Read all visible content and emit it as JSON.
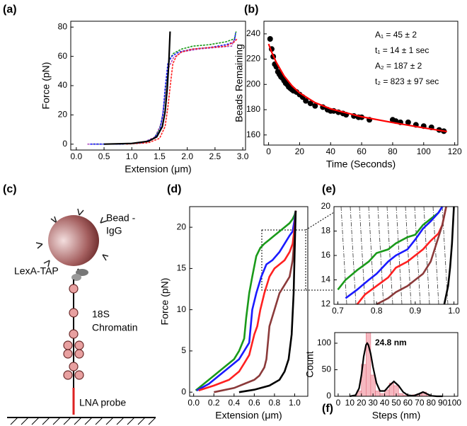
{
  "chart_data": [
    {
      "type": "line",
      "label": "(a)",
      "xlabel": "Extension (μm)",
      "ylabel": "Force (pN)",
      "xlim": [
        -0.1,
        3.05
      ],
      "ylim": [
        -4,
        84
      ],
      "xticks": [
        {
          "value": 0,
          "label": "0.0"
        },
        0.5,
        {
          "value": 1,
          "label": "1.0"
        },
        1.5,
        {
          "value": 2,
          "label": "2.0"
        },
        2.5,
        {
          "value": 3,
          "label": "3.0"
        }
      ],
      "yticks": [
        0,
        20,
        40,
        60,
        80
      ],
      "series": [
        {
          "color": "#b04cc0",
          "x": [
            0.2,
            0.8,
            1.2,
            1.42,
            1.53,
            1.6,
            1.66,
            1.75,
            1.9,
            2.2,
            2.5,
            2.8,
            2.87
          ],
          "values": [
            0,
            0,
            1,
            5,
            14,
            32,
            52,
            59,
            63,
            65,
            66,
            67,
            74
          ]
        },
        {
          "color": "#1a9a1a",
          "x": [
            0.3,
            0.8,
            1.2,
            1.4,
            1.5,
            1.57,
            1.62,
            1.68,
            1.75,
            1.9,
            2.1,
            2.4,
            2.7,
            2.85,
            2.88
          ],
          "values": [
            0,
            0,
            1,
            4,
            10,
            22,
            42,
            58,
            62,
            65,
            67,
            68,
            70,
            72,
            77
          ]
        },
        {
          "color": "#1a1aff",
          "x": [
            0.25,
            0.8,
            1.2,
            1.4,
            1.5,
            1.56,
            1.6,
            1.65,
            1.72,
            1.85,
            2.1,
            2.4,
            2.7,
            2.85,
            2.87
          ],
          "values": [
            0,
            0,
            1,
            4,
            9,
            20,
            38,
            55,
            60,
            63,
            65,
            66,
            68,
            70,
            76
          ]
        },
        {
          "color": "#ff2020",
          "x": [
            0.9,
            1.3,
            1.5,
            1.6,
            1.65,
            1.7,
            1.74,
            1.8,
            1.9,
            2.1,
            2.4,
            2.7,
            2.85,
            2.9
          ],
          "values": [
            0,
            1,
            4,
            12,
            25,
            42,
            55,
            60,
            63,
            65,
            66,
            67,
            70,
            72
          ]
        },
        {
          "color": "#000000",
          "x": [
            0.5,
            1.0,
            1.3,
            1.45,
            1.55,
            1.6,
            1.64,
            1.67,
            1.69
          ],
          "values": [
            0,
            0.5,
            2,
            5,
            12,
            22,
            38,
            58,
            77
          ]
        }
      ]
    },
    {
      "type": "line",
      "label": "(b)",
      "xlabel": "Time (Seconds)",
      "ylabel": "Beads Remaining",
      "xlim": [
        -3,
        122
      ],
      "ylim": [
        152,
        250
      ],
      "xticks": [
        0,
        20,
        40,
        60,
        80,
        100,
        120
      ],
      "yticks": [
        160,
        180,
        200,
        220,
        240
      ],
      "annotations": [
        "A₁ = 45 ± 2",
        "t₁ = 14 ± 1 sec",
        "A₂ = 187 ± 2",
        "t₂ = 823 ± 97 sec"
      ],
      "series": [
        {
          "color": "#000000",
          "mode": "markers",
          "x": [
            1,
            2,
            3,
            4,
            5,
            6,
            7,
            8,
            9,
            10,
            11,
            12,
            13,
            14,
            15,
            16,
            18,
            20,
            22,
            24,
            27,
            30,
            35,
            38,
            40,
            42,
            45,
            48,
            50,
            55,
            58,
            60,
            65,
            80,
            82,
            85,
            90,
            95,
            100,
            105,
            110,
            113
          ],
          "values": [
            236,
            228,
            222,
            216,
            214,
            210,
            208,
            206,
            205,
            203,
            201,
            200,
            198,
            197,
            196,
            195,
            194,
            192,
            190,
            187,
            185,
            183,
            182,
            180,
            179,
            179,
            178,
            177,
            176,
            175,
            174,
            174,
            172,
            172,
            171,
            170,
            170,
            168,
            167,
            166,
            164,
            163
          ]
        },
        {
          "color": "#ff0000",
          "mode": "line",
          "x": [
            0,
            2,
            5,
            10,
            15,
            20,
            30,
            40,
            60,
            80,
            100,
            115
          ],
          "values": [
            232,
            225.5,
            217.4,
            206.7,
            199,
            193.3,
            185.6,
            180.7,
            174.4,
            169.8,
            165.6,
            162.7
          ]
        }
      ]
    },
    {
      "type": "line",
      "label": "(d)",
      "xlabel": "Extension (μm)",
      "ylabel": "Force (pN)",
      "xlim": [
        -0.04,
        1.13
      ],
      "ylim": [
        -0.5,
        22.5
      ],
      "xticks": [
        {
          "value": 0,
          "label": "0.0"
        },
        0.2,
        0.4,
        0.6,
        0.8,
        {
          "value": 1,
          "label": "1.0"
        }
      ],
      "yticks": [
        0,
        5,
        10,
        15,
        20
      ],
      "series": [
        {
          "color": "#1a9a1a",
          "x": [
            0.02,
            0.1,
            0.2,
            0.3,
            0.4,
            0.45,
            0.5,
            0.52,
            0.55,
            0.58,
            0.62,
            0.66,
            0.7,
            0.75,
            0.8,
            0.85,
            0.9,
            0.95,
            0.98,
            1.0,
            1.01
          ],
          "values": [
            0.2,
            1,
            2,
            3,
            4,
            5,
            6.5,
            9,
            12,
            14,
            16.5,
            17.5,
            18,
            18.5,
            19,
            19.5,
            20,
            20.5,
            21,
            21.5,
            22
          ]
        },
        {
          "color": "#1a1aff",
          "x": [
            0.03,
            0.15,
            0.25,
            0.35,
            0.45,
            0.5,
            0.55,
            0.58,
            0.62,
            0.67,
            0.72,
            0.78,
            0.85,
            0.9,
            0.95,
            0.98,
            1.0,
            1.01
          ],
          "values": [
            0.2,
            1,
            2,
            3,
            4,
            5,
            6,
            10,
            12,
            14,
            15.5,
            16,
            17,
            18,
            19,
            19.5,
            21,
            22
          ]
        },
        {
          "color": "#ff2020",
          "x": [
            0.05,
            0.2,
            0.35,
            0.45,
            0.5,
            0.55,
            0.6,
            0.63,
            0.66,
            0.7,
            0.75,
            0.8,
            0.85,
            0.9,
            0.95,
            0.98,
            1.0,
            1.01
          ],
          "values": [
            0.2,
            0.8,
            1.5,
            2.5,
            3.5,
            4.5,
            7,
            8,
            10,
            12,
            14,
            15,
            15.5,
            16,
            17,
            18,
            20,
            22
          ]
        },
        {
          "color": "#8b3a3a",
          "x": [
            0.2,
            0.4,
            0.5,
            0.6,
            0.65,
            0.7,
            0.72,
            0.75,
            0.8,
            0.85,
            0.9,
            0.95,
            0.98,
            1.0,
            1.01
          ],
          "values": [
            0,
            0.5,
            1,
            1.5,
            2,
            3,
            4,
            8,
            10,
            12,
            13,
            14,
            16,
            19,
            22
          ]
        },
        {
          "color": "#000000",
          "x": [
            0.45,
            0.6,
            0.75,
            0.85,
            0.9,
            0.94,
            0.97,
            0.99,
            1.0,
            1.01
          ],
          "values": [
            0,
            0.3,
            0.8,
            1.5,
            2.5,
            4,
            7,
            12,
            17,
            22
          ]
        }
      ]
    },
    {
      "type": "line",
      "label": "(e)",
      "xlim": [
        0.69,
        1.01
      ],
      "ylim": [
        12,
        20
      ],
      "xticks": [
        0.7,
        0.8,
        0.9,
        {
          "value": 1,
          "label": "1.0"
        }
      ],
      "yticks": [
        12,
        14,
        16,
        18,
        20
      ],
      "series": [
        {
          "color": "#1a9a1a",
          "x": [
            0.7,
            0.72,
            0.75,
            0.78,
            0.8,
            0.83,
            0.85,
            0.88,
            0.9,
            0.92,
            0.94,
            0.96,
            0.97
          ],
          "values": [
            13.2,
            14,
            14.8,
            15.5,
            16.2,
            16.5,
            17,
            17.5,
            17.7,
            18.5,
            19,
            19.5,
            20
          ]
        },
        {
          "color": "#1a1aff",
          "x": [
            0.72,
            0.75,
            0.78,
            0.8,
            0.83,
            0.85,
            0.88,
            0.9,
            0.92,
            0.94,
            0.96,
            0.97
          ],
          "values": [
            12.5,
            13.2,
            14,
            14.5,
            15.5,
            16,
            16.5,
            17.3,
            18.2,
            18.8,
            19.5,
            20
          ]
        },
        {
          "color": "#ff2020",
          "x": [
            0.75,
            0.77,
            0.8,
            0.83,
            0.85,
            0.88,
            0.9,
            0.92,
            0.94,
            0.96,
            0.97,
            0.98
          ],
          "values": [
            12,
            12.8,
            13.5,
            14.2,
            15,
            15.5,
            16,
            16.5,
            17.2,
            17.8,
            18.5,
            20
          ]
        },
        {
          "color": "#8b3a3a",
          "x": [
            0.8,
            0.83,
            0.85,
            0.88,
            0.9,
            0.92,
            0.94,
            0.96,
            0.97,
            0.98
          ],
          "values": [
            12,
            12.5,
            13,
            13.5,
            14,
            14.5,
            15.5,
            17.5,
            18.5,
            20
          ]
        },
        {
          "color": "#000000",
          "x": [
            0.975,
            0.985,
            0.99,
            0.995,
            1.0
          ],
          "values": [
            12,
            13.5,
            15,
            17,
            20
          ]
        }
      ]
    },
    {
      "type": "histogram",
      "label": "(f)",
      "xlabel": "Steps (nm)",
      "ylabel": "Count",
      "xlim": [
        -3,
        103
      ],
      "ylim": [
        0,
        120
      ],
      "xticks": [
        0,
        10,
        20,
        30,
        40,
        50,
        60,
        70,
        80,
        90,
        100
      ],
      "yticks": [
        0,
        50,
        100
      ],
      "annotations": [
        "24.8 nm"
      ],
      "color": "#f4a6b0",
      "bins": [
        0,
        4,
        8,
        12,
        16,
        20,
        24,
        28,
        32,
        36,
        40,
        44,
        48,
        52,
        56,
        60,
        64,
        68,
        72,
        76,
        80,
        84,
        88,
        92,
        96,
        100
      ],
      "values": [
        0,
        0,
        0,
        0,
        10,
        60,
        120,
        40,
        10,
        5,
        12,
        25,
        20,
        5,
        2,
        0,
        3,
        5,
        8,
        3,
        0,
        0,
        0,
        0,
        0
      ],
      "series": [
        {
          "color": "#000000",
          "mode": "line",
          "x": [
            10,
            15,
            18,
            20,
            22,
            24,
            25,
            26,
            28,
            30,
            33,
            36,
            40,
            44,
            48,
            52,
            56,
            60,
            65,
            70,
            73,
            76,
            80,
            85,
            90
          ],
          "values": [
            0,
            2,
            15,
            40,
            75,
            97,
            100,
            97,
            80,
            55,
            25,
            10,
            10,
            20,
            28,
            20,
            8,
            2,
            1,
            5,
            8,
            5,
            1,
            0,
            0
          ]
        }
      ]
    }
  ],
  "diagram": {
    "label": "(c)",
    "labels": [
      "Bead -",
      "IgG",
      "LexA-TAP",
      "18S",
      "Chromatin",
      "LNA probe"
    ]
  }
}
